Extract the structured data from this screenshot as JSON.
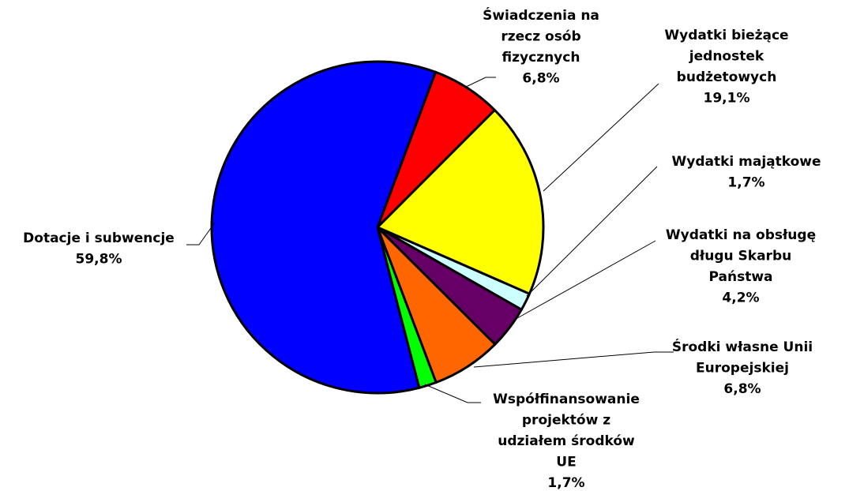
{
  "chart_data": {
    "type": "pie",
    "categories": [
      "Świadczenia na rzecz osób fizycznych",
      "Wydatki bieżące jednostek budżetowych",
      "Wydatki majątkowe",
      "Wydatki na obsługę długu Skarbu Państwa",
      "Środki własne Unii Europejskiej",
      "Współfinansowanie projektów z udziałem środków UE",
      "Dotacje i subwencje"
    ],
    "values": [
      6.8,
      19.1,
      1.7,
      4.2,
      6.8,
      1.7,
      59.8
    ],
    "value_labels": [
      "6,8%",
      "19,1%",
      "1,7%",
      "4,2%",
      "6,8%",
      "1,7%",
      "59,8%"
    ],
    "colors": [
      "#ff0000",
      "#ffff00",
      "#ccffff",
      "#660066",
      "#ff6600",
      "#00ff00",
      "#0000ff"
    ]
  }
}
